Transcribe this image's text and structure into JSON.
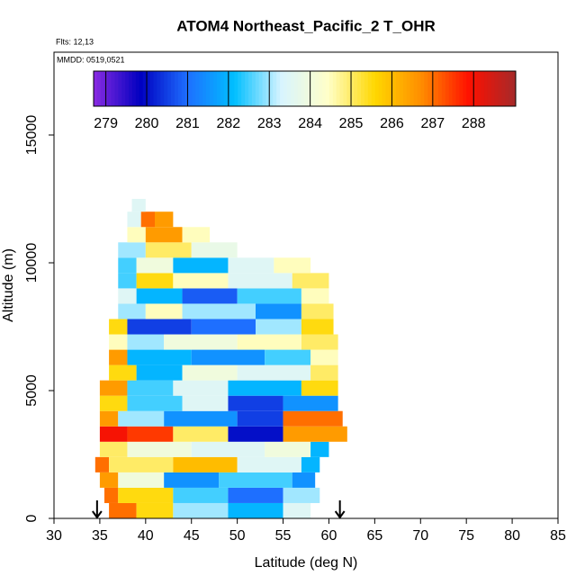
{
  "chart_data": {
    "type": "curtain",
    "title": "ATOM4 Northeast_Pacific_2 T_OHR",
    "flights_label": "Flts: 12,13",
    "dates_label": "MMDD: 0519,0521",
    "xlabel": "Latitude (deg N)",
    "ylabel": "Altitude (m)",
    "xlim": [
      30,
      85
    ],
    "xticks": [
      30,
      35,
      40,
      45,
      50,
      55,
      60,
      65,
      70,
      75,
      80,
      85
    ],
    "ylim": [
      0,
      18240
    ],
    "yticks": [
      0,
      5000,
      10000,
      15000
    ],
    "clim": [
      278.7,
      289.03
    ],
    "cticks": [
      279,
      280,
      281,
      282,
      283,
      284,
      285,
      286,
      287,
      288
    ],
    "colormap": [
      "#8a2be2",
      "#0000c0",
      "#1e6fff",
      "#00bfff",
      "#d8f4ff",
      "#ffffc8",
      "#ffd700",
      "#ff8c00",
      "#ff1000",
      "#a52a2a"
    ],
    "arrows_lat": [
      34.7,
      61.2
    ],
    "rows": [
      {
        "alt": [
          0,
          600
        ],
        "lat_edges": [
          36,
          39,
          43,
          49,
          55,
          58
        ],
        "values": [
          287,
          285.5,
          283,
          282,
          283.5
        ]
      },
      {
        "alt": [
          600,
          1200
        ],
        "lat_edges": [
          35.5,
          37,
          43,
          49,
          55,
          59
        ],
        "values": [
          287,
          285.5,
          282.5,
          281,
          283
        ]
      },
      {
        "alt": [
          1200,
          1800
        ],
        "lat_edges": [
          35,
          37,
          42,
          48,
          56,
          58.5
        ],
        "values": [
          286.5,
          284,
          281.5,
          282.5,
          281.5
        ]
      },
      {
        "alt": [
          1800,
          2400
        ],
        "lat_edges": [
          34.5,
          36,
          43,
          50,
          57,
          59
        ],
        "values": [
          287,
          285,
          286,
          283.5,
          282
        ]
      },
      {
        "alt": [
          2400,
          3000
        ],
        "lat_edges": [
          35,
          38,
          45,
          53,
          58,
          60
        ],
        "values": [
          285,
          284,
          283.5,
          284,
          282
        ]
      },
      {
        "alt": [
          3000,
          3600
        ],
        "lat_edges": [
          35,
          38,
          43,
          49,
          55,
          62
        ],
        "values": [
          288,
          287.5,
          285,
          280,
          286.5
        ]
      },
      {
        "alt": [
          3600,
          4200
        ],
        "lat_edges": [
          35,
          37,
          42,
          50,
          55,
          61.5
        ],
        "values": [
          286.5,
          283,
          281.5,
          280.5,
          287
        ]
      },
      {
        "alt": [
          4200,
          4800
        ],
        "lat_edges": [
          35,
          38,
          44,
          49,
          55,
          61
        ],
        "values": [
          285.5,
          282.5,
          283.5,
          280.5,
          281.5
        ]
      },
      {
        "alt": [
          4800,
          5400
        ],
        "lat_edges": [
          35,
          38,
          43,
          49,
          57,
          61
        ],
        "values": [
          286.5,
          282.5,
          283.5,
          282,
          285.5
        ]
      },
      {
        "alt": [
          5400,
          6000
        ],
        "lat_edges": [
          36,
          39,
          44,
          50,
          58,
          61
        ],
        "values": [
          285.5,
          282,
          284,
          283.5,
          285
        ]
      },
      {
        "alt": [
          6000,
          6600
        ],
        "lat_edges": [
          36,
          38,
          45,
          53,
          58,
          61
        ],
        "values": [
          286.5,
          282,
          281.5,
          282.5,
          284.5
        ]
      },
      {
        "alt": [
          6600,
          7200
        ],
        "lat_edges": [
          36,
          38,
          42,
          50,
          57,
          61
        ],
        "values": [
          284.5,
          283,
          284,
          284.5,
          285
        ]
      },
      {
        "alt": [
          7200,
          7800
        ],
        "lat_edges": [
          36,
          38,
          45,
          52,
          57,
          60.5
        ],
        "values": [
          285.5,
          280.5,
          281,
          283,
          285.5
        ]
      },
      {
        "alt": [
          7800,
          8400
        ],
        "lat_edges": [
          37,
          40,
          44,
          52,
          57,
          60.5
        ],
        "values": [
          283,
          284.5,
          283,
          281.5,
          285
        ]
      },
      {
        "alt": [
          8400,
          9000
        ],
        "lat_edges": [
          37,
          39,
          44,
          50,
          57,
          60
        ],
        "values": [
          283.5,
          282,
          280.8,
          282.5,
          284.5
        ]
      },
      {
        "alt": [
          9000,
          9600
        ],
        "lat_edges": [
          37,
          39,
          43,
          49,
          56,
          60
        ],
        "values": [
          282.5,
          285.5,
          284.5,
          283.5,
          285
        ]
      },
      {
        "alt": [
          9600,
          10200
        ],
        "lat_edges": [
          37,
          39,
          43,
          49,
          54,
          58
        ],
        "values": [
          282.5,
          284,
          282,
          283.5,
          284.5
        ]
      },
      {
        "alt": [
          10200,
          10800
        ],
        "lat_edges": [
          37,
          40,
          45,
          50
        ],
        "values": [
          283,
          285,
          283.8
        ]
      },
      {
        "alt": [
          10800,
          11400
        ],
        "lat_edges": [
          38,
          40,
          44,
          47
        ],
        "values": [
          284.5,
          286.5,
          284.5
        ]
      },
      {
        "alt": [
          11400,
          12000
        ],
        "lat_edges": [
          38,
          39.5,
          41,
          43
        ],
        "values": [
          283.5,
          287,
          286.5
        ]
      },
      {
        "alt": [
          12000,
          12500
        ],
        "lat_edges": [
          38.5,
          40
        ],
        "values": [
          283.5
        ]
      }
    ]
  }
}
